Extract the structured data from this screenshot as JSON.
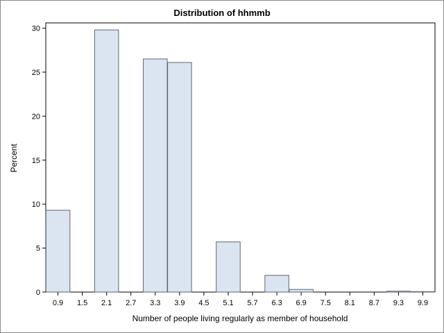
{
  "chart_data": {
    "type": "bar",
    "title": "Distribution of hhmmb",
    "xlabel": "Number of people living regularly as member of household",
    "ylabel": "Percent",
    "ylim": [
      0,
      30
    ],
    "yticks": [
      0,
      5,
      10,
      15,
      20,
      25,
      30
    ],
    "xticks": [
      "0.9",
      "1.5",
      "2.1",
      "2.7",
      "3.3",
      "3.9",
      "4.5",
      "5.1",
      "5.7",
      "6.3",
      "6.9",
      "7.5",
      "8.1",
      "8.7",
      "9.3",
      "9.9"
    ],
    "categories": [
      "0.9",
      "1.5",
      "2.1",
      "2.7",
      "3.3",
      "3.9",
      "4.5",
      "5.1",
      "5.7",
      "6.3",
      "6.9",
      "7.5",
      "8.1",
      "8.7",
      "9.3",
      "9.9"
    ],
    "values": [
      9.3,
      0,
      29.8,
      0,
      26.5,
      26.1,
      0,
      5.7,
      0,
      1.9,
      0.3,
      0,
      0,
      0,
      0.1,
      0.05
    ],
    "grid": false,
    "colors": {
      "bar_fill": "#dbe5f1",
      "bar_stroke": "#5d6670",
      "axis": "#000000"
    }
  }
}
